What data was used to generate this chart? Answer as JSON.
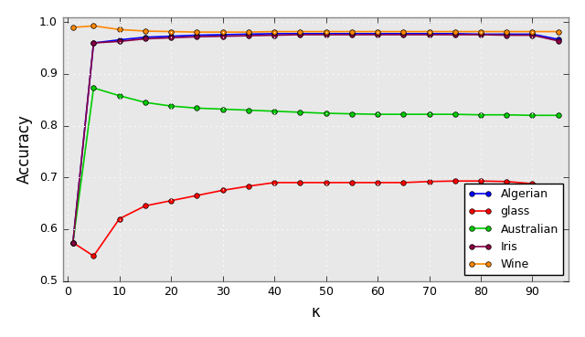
{
  "title": "",
  "xlabel": "κ",
  "ylabel": "Accuracy",
  "xlim": [
    -1,
    97
  ],
  "ylim": [
    0.5,
    1.01
  ],
  "yticks": [
    0.5,
    0.6,
    0.7,
    0.8,
    0.9,
    1.0
  ],
  "xticks": [
    0,
    10,
    20,
    30,
    40,
    50,
    60,
    70,
    80,
    90
  ],
  "series": [
    {
      "label": "Algerian",
      "color": "#0000FF",
      "marker": "o",
      "x": [
        1,
        5,
        10,
        15,
        20,
        25,
        30,
        35,
        40,
        45,
        50,
        55,
        60,
        65,
        70,
        75,
        80,
        85,
        90,
        95
      ],
      "y": [
        0.574,
        0.96,
        0.966,
        0.971,
        0.973,
        0.975,
        0.976,
        0.977,
        0.978,
        0.978,
        0.978,
        0.978,
        0.978,
        0.978,
        0.978,
        0.978,
        0.977,
        0.977,
        0.977,
        0.967
      ]
    },
    {
      "label": "glass",
      "color": "#FF0000",
      "marker": "o",
      "x": [
        1,
        5,
        10,
        15,
        20,
        25,
        30,
        35,
        40,
        45,
        50,
        55,
        60,
        65,
        70,
        75,
        80,
        85,
        90,
        95
      ],
      "y": [
        0.574,
        0.548,
        0.62,
        0.645,
        0.655,
        0.665,
        0.675,
        0.683,
        0.69,
        0.69,
        0.69,
        0.69,
        0.69,
        0.69,
        0.692,
        0.693,
        0.693,
        0.692,
        0.688,
        0.68
      ]
    },
    {
      "label": "Australian",
      "color": "#00CC00",
      "marker": "o",
      "x": [
        1,
        5,
        10,
        15,
        20,
        25,
        30,
        35,
        40,
        45,
        50,
        55,
        60,
        65,
        70,
        75,
        80,
        85,
        90,
        95
      ],
      "y": [
        0.574,
        0.873,
        0.858,
        0.845,
        0.838,
        0.834,
        0.832,
        0.83,
        0.828,
        0.826,
        0.824,
        0.823,
        0.822,
        0.822,
        0.822,
        0.822,
        0.821,
        0.821,
        0.82,
        0.82
      ]
    },
    {
      "label": "Iris",
      "color": "#880044",
      "marker": "o",
      "x": [
        1,
        5,
        10,
        15,
        20,
        25,
        30,
        35,
        40,
        45,
        50,
        55,
        60,
        65,
        70,
        75,
        80,
        85,
        90,
        95
      ],
      "y": [
        0.574,
        0.96,
        0.963,
        0.968,
        0.97,
        0.972,
        0.973,
        0.974,
        0.975,
        0.976,
        0.976,
        0.976,
        0.976,
        0.976,
        0.976,
        0.976,
        0.976,
        0.975,
        0.975,
        0.964
      ]
    },
    {
      "label": "Wine",
      "color": "#FF8800",
      "marker": "o",
      "x": [
        1,
        5,
        10,
        15,
        20,
        25,
        30,
        35,
        40,
        45,
        50,
        55,
        60,
        65,
        70,
        75,
        80,
        85,
        90,
        95
      ],
      "y": [
        0.99,
        0.993,
        0.986,
        0.983,
        0.982,
        0.981,
        0.981,
        0.981,
        0.982,
        0.982,
        0.982,
        0.982,
        0.982,
        0.982,
        0.982,
        0.982,
        0.982,
        0.982,
        0.982,
        0.982
      ]
    }
  ],
  "legend_loc": "lower right",
  "markersize": 4,
  "linewidth": 1.2,
  "style": "classic"
}
